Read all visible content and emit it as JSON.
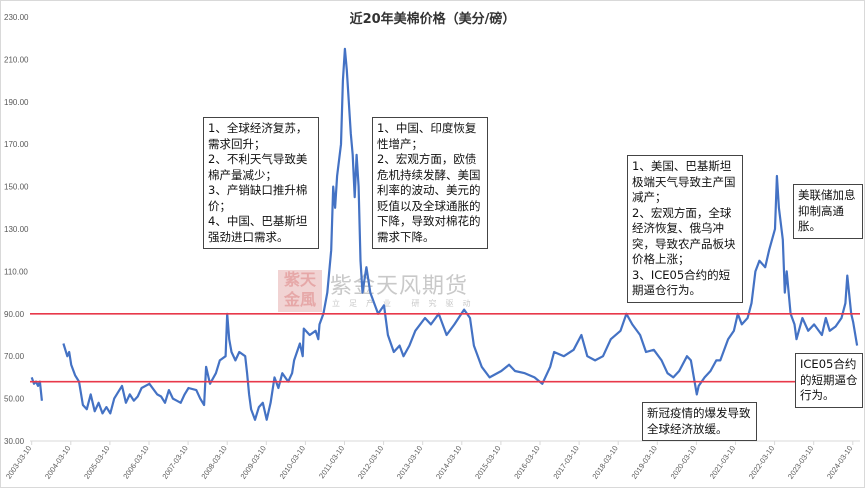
{
  "chart_data": {
    "type": "line",
    "title": "近20年美棉价格（美分/磅）",
    "xlabel": "",
    "ylabel": "",
    "ylim": [
      30,
      230
    ],
    "y_ticks": [
      "230.00",
      "210.00",
      "190.00",
      "170.00",
      "150.00",
      "130.00",
      "110.00",
      "90.00",
      "70.00",
      "50.00",
      "30.00"
    ],
    "x_tick_labels": [
      "2003-03-10",
      "2004-03-10",
      "2005-03-10",
      "2006-03-10",
      "2007-03-10",
      "2008-03-10",
      "2009-03-10",
      "2010-03-10",
      "2011-03-10",
      "2012-03-10",
      "2013-03-10",
      "2014-03-10",
      "2015-03-10",
      "2016-03-10",
      "2017-03-10",
      "2018-03-10",
      "2019-03-10",
      "2020-03-10",
      "2021-03-10",
      "2022-03-10",
      "2023-03-10",
      "2024-03-10"
    ],
    "xlim_years": [
      2003.19,
      2024.4
    ],
    "reference_lines": [
      90,
      58
    ],
    "colors": {
      "series": "#4472c4",
      "reference": "#e8394a",
      "axis": "#d9d9d9"
    },
    "series": [
      {
        "name": "美棉价格 (segment 1)",
        "x": [
          2003.19,
          2003.25,
          2003.3,
          2003.35,
          2003.4,
          2003.45
        ],
        "values": [
          60,
          57,
          58,
          56,
          58,
          49
        ]
      },
      {
        "name": "美棉价格",
        "x": [
          2004.0,
          2004.1,
          2004.15,
          2004.2,
          2004.3,
          2004.4,
          2004.5,
          2004.6,
          2004.7,
          2004.8,
          2004.9,
          2005.0,
          2005.1,
          2005.2,
          2005.3,
          2005.4,
          2005.5,
          2005.6,
          2005.7,
          2005.8,
          2005.9,
          2006.0,
          2006.2,
          2006.4,
          2006.5,
          2006.6,
          2006.7,
          2006.8,
          2006.9,
          2007.0,
          2007.1,
          2007.2,
          2007.4,
          2007.5,
          2007.6,
          2007.65,
          2007.75,
          2007.9,
          2008.0,
          2008.15,
          2008.19,
          2008.24,
          2008.3,
          2008.4,
          2008.5,
          2008.65,
          2008.7,
          2008.75,
          2008.8,
          2008.9,
          2009.0,
          2009.1,
          2009.2,
          2009.3,
          2009.4,
          2009.5,
          2009.6,
          2009.75,
          2009.85,
          2009.9,
          2010.05,
          2010.12,
          2010.15,
          2010.3,
          2010.45,
          2010.52,
          2010.55,
          2010.65,
          2010.75,
          2010.85,
          2010.9,
          2010.95,
          2011.0,
          2011.1,
          2011.15,
          2011.2,
          2011.25,
          2011.3,
          2011.35,
          2011.4,
          2011.45,
          2011.5,
          2011.55,
          2011.6,
          2011.65,
          2011.75,
          2011.85,
          2011.95,
          2012.05,
          2012.2,
          2012.3,
          2012.45,
          2012.6,
          2012.7,
          2012.85,
          2013.0,
          2013.25,
          2013.4,
          2013.6,
          2013.8,
          2014.0,
          2014.25,
          2014.4,
          2014.5,
          2014.7,
          2014.9,
          2015.2,
          2015.4,
          2015.55,
          2015.8,
          2016.05,
          2016.25,
          2016.45,
          2016.55,
          2016.8,
          2017.05,
          2017.25,
          2017.4,
          2017.6,
          2017.8,
          2018.0,
          2018.25,
          2018.4,
          2018.55,
          2018.75,
          2018.9,
          2019.1,
          2019.3,
          2019.45,
          2019.6,
          2019.75,
          2019.95,
          2020.05,
          2020.2,
          2020.25,
          2020.4,
          2020.55,
          2020.7,
          2020.8,
          2021.0,
          2021.15,
          2021.25,
          2021.35,
          2021.5,
          2021.6,
          2021.7,
          2021.8,
          2021.95,
          2022.05,
          2022.2,
          2022.25,
          2022.3,
          2022.4,
          2022.45,
          2022.5,
          2022.6,
          2022.7,
          2022.75,
          2022.9,
          2023.05,
          2023.2,
          2023.4,
          2023.5,
          2023.6,
          2023.75,
          2023.9,
          2024.0,
          2024.05,
          2024.15,
          2024.2,
          2024.3
        ],
        "values": [
          76,
          70,
          72,
          66,
          61,
          58,
          47,
          45,
          52,
          44,
          48,
          43,
          46,
          43,
          50,
          53,
          56,
          48,
          52,
          49,
          51,
          55,
          57,
          52,
          51,
          48,
          54,
          50,
          49,
          48,
          52,
          55,
          54,
          50,
          47,
          65,
          57,
          62,
          68,
          70,
          90,
          78,
          72,
          68,
          72,
          70,
          62,
          52,
          45,
          40,
          46,
          48,
          40,
          48,
          60,
          55,
          62,
          58,
          62,
          68,
          76,
          70,
          83,
          80,
          82,
          78,
          85,
          90,
          100,
          120,
          150,
          140,
          155,
          170,
          200,
          215,
          205,
          190,
          175,
          165,
          145,
          165,
          150,
          115,
          100,
          112,
          100,
          95,
          90,
          94,
          80,
          72,
          75,
          70,
          75,
          82,
          88,
          85,
          90,
          80,
          85,
          92,
          88,
          75,
          65,
          60,
          63,
          66,
          63,
          62,
          60,
          57,
          65,
          72,
          70,
          73,
          80,
          70,
          68,
          70,
          78,
          82,
          90,
          85,
          80,
          72,
          73,
          68,
          62,
          60,
          63,
          70,
          68,
          52,
          56,
          60,
          63,
          68,
          68,
          78,
          82,
          90,
          85,
          88,
          95,
          110,
          115,
          112,
          120,
          130,
          155,
          140,
          125,
          100,
          110,
          90,
          85,
          78,
          88,
          82,
          85,
          80,
          88,
          82,
          84,
          88,
          95,
          108,
          90,
          86,
          75
        ]
      }
    ]
  },
  "annotations": [
    {
      "id": "box-2010",
      "text": "1、全球经济复苏，需求回升；\n2、不利天气导致美棉产量减少；\n3、产销缺口推升棉价；\n4、中国、巴基斯坦强劲进口需求。"
    },
    {
      "id": "box-2011",
      "text": "1、中国、印度恢复性增产；\n2、宏观方面，欧债危机持续发酵、美国利率的波动、美元的贬值以及全球通胀的下降，导致对棉花的需求下降。"
    },
    {
      "id": "box-2021",
      "text": "1、美国、巴基斯坦极端天气导致主产国减产；\n2、宏观方面，全球经济恢复、俄乌冲突，导致农产品板块价格上涨；\n3、ICE05合约的短期逼仓行为。"
    },
    {
      "id": "box-fed",
      "text": "美联储加息抑制高通胀。"
    },
    {
      "id": "box-covid",
      "text": "新冠疫情的爆发导致全球经济放缓。"
    },
    {
      "id": "box-ice05",
      "text": "ICE05合约的短期逼仓行为。"
    }
  ],
  "watermark": {
    "logo": "紫金天风",
    "name": "紫金天风期货",
    "slogan": "立足产业 研究驱动"
  }
}
